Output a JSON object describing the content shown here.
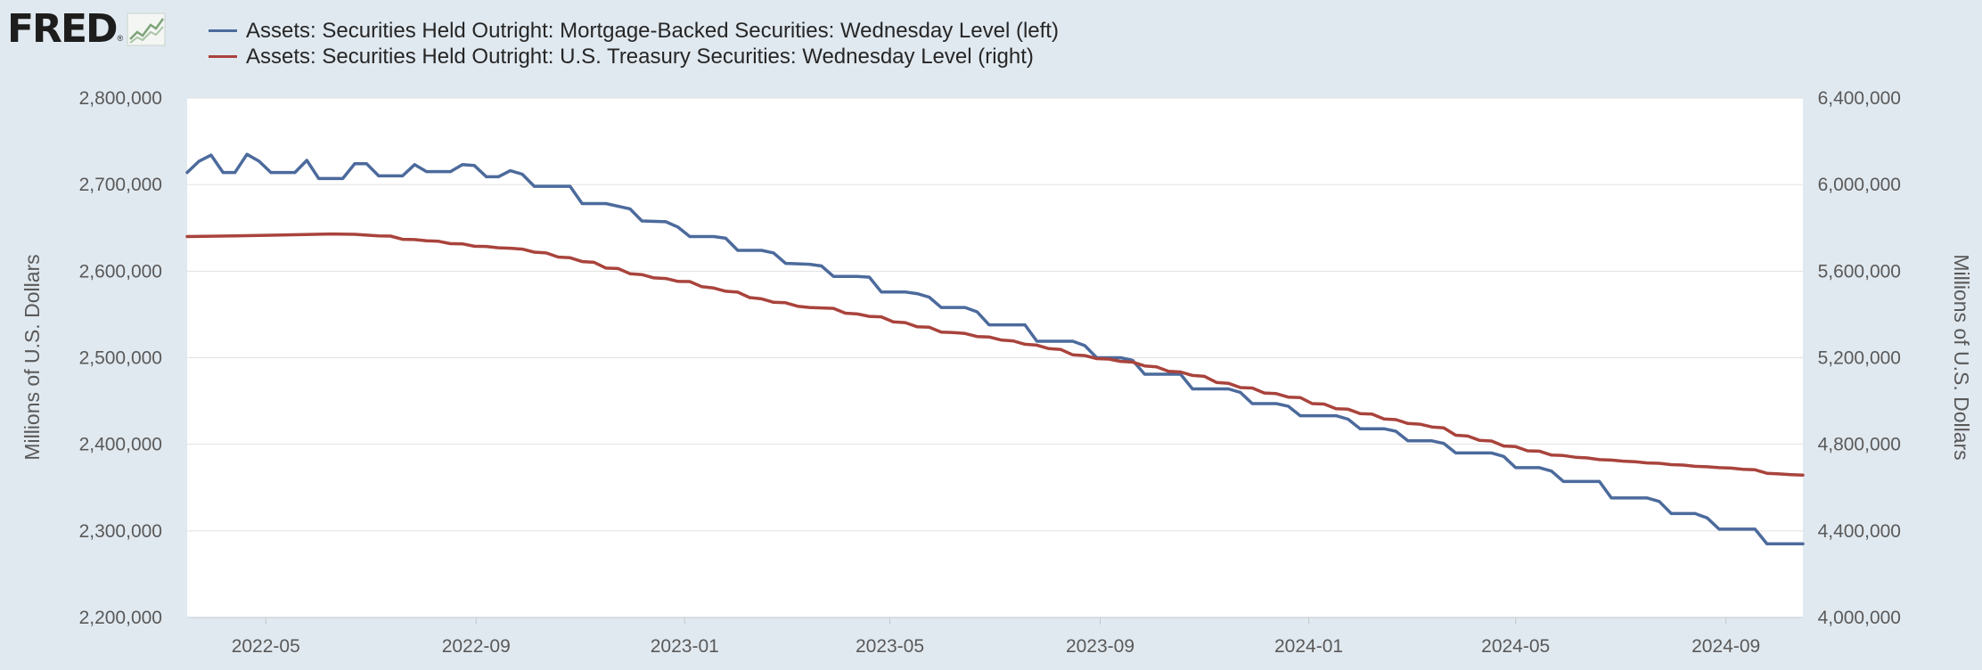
{
  "logo": {
    "text": "FRED",
    "reg": "®",
    "icon": "line-graph-icon"
  },
  "chart_data": {
    "type": "line",
    "title": "",
    "xlabel": "",
    "y_left_label": "Millions of U.S. Dollars",
    "y_right_label": "Millions of U.S. Dollars",
    "x_range": [
      "2022-03-16",
      "2024-10-16"
    ],
    "x_ticks": [
      "2022-05",
      "2022-09",
      "2023-01",
      "2023-05",
      "2023-09",
      "2024-01",
      "2024-05",
      "2024-09"
    ],
    "y_left_range": [
      2200000,
      2800000
    ],
    "y_left_ticks": [
      "2,200,000",
      "2,300,000",
      "2,400,000",
      "2,500,000",
      "2,600,000",
      "2,700,000",
      "2,800,000"
    ],
    "y_right_range": [
      4000000,
      6400000
    ],
    "y_right_ticks": [
      "4,000,000",
      "4,400,000",
      "4,800,000",
      "5,200,000",
      "5,600,000",
      "6,000,000",
      "6,400,000"
    ],
    "grid": true,
    "legend_position": "top-left",
    "series": [
      {
        "name": "Assets: Securities Held Outright: Mortgage-Backed Securities: Wednesday Level (left)",
        "color": "#4c6a9c",
        "axis": "left",
        "points": [
          [
            "2022-03-16",
            2714000
          ],
          [
            "2022-03-23",
            2727000
          ],
          [
            "2022-03-30",
            2734000
          ],
          [
            "2022-04-06",
            2714000
          ],
          [
            "2022-04-13",
            2714000
          ],
          [
            "2022-04-20",
            2735000
          ],
          [
            "2022-04-27",
            2727000
          ],
          [
            "2022-05-04",
            2714000
          ],
          [
            "2022-05-18",
            2714000
          ],
          [
            "2022-05-25",
            2728000
          ],
          [
            "2022-06-01",
            2707000
          ],
          [
            "2022-06-15",
            2707000
          ],
          [
            "2022-06-22",
            2724000
          ],
          [
            "2022-06-29",
            2724000
          ],
          [
            "2022-07-06",
            2710000
          ],
          [
            "2022-07-20",
            2710000
          ],
          [
            "2022-07-27",
            2723000
          ],
          [
            "2022-08-03",
            2715000
          ],
          [
            "2022-08-17",
            2715000
          ],
          [
            "2022-08-24",
            2723000
          ],
          [
            "2022-08-31",
            2722000
          ],
          [
            "2022-09-07",
            2709000
          ],
          [
            "2022-09-14",
            2709000
          ],
          [
            "2022-09-21",
            2716000
          ],
          [
            "2022-09-28",
            2712000
          ],
          [
            "2022-10-05",
            2698000
          ],
          [
            "2022-10-26",
            2698000
          ],
          [
            "2022-11-02",
            2678000
          ],
          [
            "2022-11-16",
            2678000
          ],
          [
            "2022-11-30",
            2672000
          ],
          [
            "2022-12-07",
            2658000
          ],
          [
            "2022-12-21",
            2657000
          ],
          [
            "2022-12-28",
            2651000
          ],
          [
            "2023-01-04",
            2640000
          ],
          [
            "2023-01-18",
            2640000
          ],
          [
            "2023-01-25",
            2638000
          ],
          [
            "2023-02-01",
            2624000
          ],
          [
            "2023-02-15",
            2624000
          ],
          [
            "2023-02-22",
            2621000
          ],
          [
            "2023-03-01",
            2609000
          ],
          [
            "2023-03-15",
            2608000
          ],
          [
            "2023-03-22",
            2606000
          ],
          [
            "2023-03-29",
            2594000
          ],
          [
            "2023-04-12",
            2594000
          ],
          [
            "2023-04-19",
            2593000
          ],
          [
            "2023-04-26",
            2576000
          ],
          [
            "2023-05-10",
            2576000
          ],
          [
            "2023-05-17",
            2574000
          ],
          [
            "2023-05-24",
            2570000
          ],
          [
            "2023-05-31",
            2558000
          ],
          [
            "2023-06-14",
            2558000
          ],
          [
            "2023-06-21",
            2553000
          ],
          [
            "2023-06-28",
            2538000
          ],
          [
            "2023-07-19",
            2538000
          ],
          [
            "2023-07-26",
            2519000
          ],
          [
            "2023-08-16",
            2519000
          ],
          [
            "2023-08-23",
            2514000
          ],
          [
            "2023-08-30",
            2500000
          ],
          [
            "2023-09-13",
            2500000
          ],
          [
            "2023-09-20",
            2497000
          ],
          [
            "2023-09-27",
            2481000
          ],
          [
            "2023-10-18",
            2481000
          ],
          [
            "2023-10-25",
            2464000
          ],
          [
            "2023-11-15",
            2464000
          ],
          [
            "2023-11-22",
            2460000
          ],
          [
            "2023-11-29",
            2447000
          ],
          [
            "2023-12-13",
            2447000
          ],
          [
            "2023-12-20",
            2444000
          ],
          [
            "2023-12-27",
            2433000
          ],
          [
            "2024-01-17",
            2433000
          ],
          [
            "2024-01-24",
            2429000
          ],
          [
            "2024-01-31",
            2418000
          ],
          [
            "2024-02-14",
            2418000
          ],
          [
            "2024-02-21",
            2415000
          ],
          [
            "2024-02-28",
            2404000
          ],
          [
            "2024-03-13",
            2404000
          ],
          [
            "2024-03-20",
            2401000
          ],
          [
            "2024-03-27",
            2390000
          ],
          [
            "2024-04-17",
            2390000
          ],
          [
            "2024-04-24",
            2386000
          ],
          [
            "2024-05-01",
            2373000
          ],
          [
            "2024-05-15",
            2373000
          ],
          [
            "2024-05-22",
            2369000
          ],
          [
            "2024-05-29",
            2357000
          ],
          [
            "2024-06-19",
            2357000
          ],
          [
            "2024-06-26",
            2338000
          ],
          [
            "2024-07-17",
            2338000
          ],
          [
            "2024-07-24",
            2334000
          ],
          [
            "2024-07-31",
            2320000
          ],
          [
            "2024-08-14",
            2320000
          ],
          [
            "2024-08-21",
            2315000
          ],
          [
            "2024-08-28",
            2302000
          ],
          [
            "2024-09-18",
            2302000
          ],
          [
            "2024-09-25",
            2285000
          ],
          [
            "2024-10-16",
            2285000
          ]
        ]
      },
      {
        "name": "Assets: Securities Held Outright: U.S. Treasury Securities: Wednesday Level (right)",
        "color": "#a9433c",
        "axis": "right",
        "points": [
          [
            "2022-03-16",
            5760000
          ],
          [
            "2022-04-13",
            5763000
          ],
          [
            "2022-05-11",
            5767000
          ],
          [
            "2022-06-08",
            5772000
          ],
          [
            "2022-06-22",
            5770000
          ],
          [
            "2022-07-06",
            5763000
          ],
          [
            "2022-07-13",
            5762000
          ],
          [
            "2022-07-20",
            5747000
          ],
          [
            "2022-07-27",
            5746000
          ],
          [
            "2022-08-03",
            5740000
          ],
          [
            "2022-08-10",
            5738000
          ],
          [
            "2022-08-17",
            5727000
          ],
          [
            "2022-08-24",
            5726000
          ],
          [
            "2022-08-31",
            5715000
          ],
          [
            "2022-09-07",
            5714000
          ],
          [
            "2022-09-14",
            5708000
          ],
          [
            "2022-09-21",
            5706000
          ],
          [
            "2022-09-28",
            5702000
          ],
          [
            "2022-10-05",
            5688000
          ],
          [
            "2022-10-12",
            5684000
          ],
          [
            "2022-10-19",
            5665000
          ],
          [
            "2022-10-26",
            5662000
          ],
          [
            "2022-11-02",
            5644000
          ],
          [
            "2022-11-09",
            5641000
          ],
          [
            "2022-11-16",
            5614000
          ],
          [
            "2022-11-23",
            5612000
          ],
          [
            "2022-11-30",
            5588000
          ],
          [
            "2022-12-07",
            5584000
          ],
          [
            "2022-12-14",
            5569000
          ],
          [
            "2022-12-21",
            5566000
          ],
          [
            "2022-12-28",
            5553000
          ],
          [
            "2023-01-04",
            5552000
          ],
          [
            "2023-01-11",
            5528000
          ],
          [
            "2023-01-18",
            5522000
          ],
          [
            "2023-01-25",
            5507000
          ],
          [
            "2023-02-01",
            5503000
          ],
          [
            "2023-02-08",
            5478000
          ],
          [
            "2023-02-15",
            5472000
          ],
          [
            "2023-02-22",
            5456000
          ],
          [
            "2023-03-01",
            5454000
          ],
          [
            "2023-03-08",
            5438000
          ],
          [
            "2023-03-15",
            5432000
          ],
          [
            "2023-03-22",
            5430000
          ],
          [
            "2023-03-29",
            5428000
          ],
          [
            "2023-04-05",
            5406000
          ],
          [
            "2023-04-12",
            5402000
          ],
          [
            "2023-04-19",
            5391000
          ],
          [
            "2023-04-26",
            5389000
          ],
          [
            "2023-05-03",
            5366000
          ],
          [
            "2023-05-10",
            5362000
          ],
          [
            "2023-05-17",
            5343000
          ],
          [
            "2023-05-24",
            5341000
          ],
          [
            "2023-05-31",
            5318000
          ],
          [
            "2023-06-07",
            5316000
          ],
          [
            "2023-06-14",
            5312000
          ],
          [
            "2023-06-21",
            5298000
          ],
          [
            "2023-06-28",
            5296000
          ],
          [
            "2023-07-05",
            5282000
          ],
          [
            "2023-07-12",
            5278000
          ],
          [
            "2023-07-19",
            5262000
          ],
          [
            "2023-07-26",
            5258000
          ],
          [
            "2023-08-02",
            5242000
          ],
          [
            "2023-08-09",
            5238000
          ],
          [
            "2023-08-16",
            5213000
          ],
          [
            "2023-08-23",
            5210000
          ],
          [
            "2023-08-30",
            5196000
          ],
          [
            "2023-09-06",
            5194000
          ],
          [
            "2023-09-13",
            5183000
          ],
          [
            "2023-09-20",
            5180000
          ],
          [
            "2023-09-27",
            5162000
          ],
          [
            "2023-10-04",
            5158000
          ],
          [
            "2023-10-11",
            5137000
          ],
          [
            "2023-10-18",
            5134000
          ],
          [
            "2023-10-25",
            5118000
          ],
          [
            "2023-11-01",
            5114000
          ],
          [
            "2023-11-08",
            5086000
          ],
          [
            "2023-11-15",
            5082000
          ],
          [
            "2023-11-22",
            5062000
          ],
          [
            "2023-11-29",
            5060000
          ],
          [
            "2023-12-06",
            5037000
          ],
          [
            "2023-12-13",
            5034000
          ],
          [
            "2023-12-20",
            5018000
          ],
          [
            "2023-12-27",
            5016000
          ],
          [
            "2024-01-03",
            4988000
          ],
          [
            "2024-01-10",
            4986000
          ],
          [
            "2024-01-17",
            4964000
          ],
          [
            "2024-01-24",
            4962000
          ],
          [
            "2024-01-31",
            4942000
          ],
          [
            "2024-02-07",
            4940000
          ],
          [
            "2024-02-14",
            4917000
          ],
          [
            "2024-02-21",
            4914000
          ],
          [
            "2024-02-28",
            4896000
          ],
          [
            "2024-03-06",
            4893000
          ],
          [
            "2024-03-13",
            4880000
          ],
          [
            "2024-03-20",
            4876000
          ],
          [
            "2024-03-27",
            4842000
          ],
          [
            "2024-04-03",
            4838000
          ],
          [
            "2024-04-10",
            4818000
          ],
          [
            "2024-04-17",
            4815000
          ],
          [
            "2024-04-24",
            4792000
          ],
          [
            "2024-05-01",
            4789000
          ],
          [
            "2024-05-08",
            4770000
          ],
          [
            "2024-05-15",
            4768000
          ],
          [
            "2024-05-22",
            4750000
          ],
          [
            "2024-05-29",
            4748000
          ],
          [
            "2024-06-05",
            4740000
          ],
          [
            "2024-06-12",
            4737000
          ],
          [
            "2024-06-19",
            4729000
          ],
          [
            "2024-06-26",
            4727000
          ],
          [
            "2024-07-03",
            4722000
          ],
          [
            "2024-07-10",
            4719000
          ],
          [
            "2024-07-17",
            4714000
          ],
          [
            "2024-07-24",
            4712000
          ],
          [
            "2024-07-31",
            4706000
          ],
          [
            "2024-08-07",
            4704000
          ],
          [
            "2024-08-14",
            4698000
          ],
          [
            "2024-08-21",
            4696000
          ],
          [
            "2024-08-28",
            4692000
          ],
          [
            "2024-09-04",
            4690000
          ],
          [
            "2024-09-11",
            4684000
          ],
          [
            "2024-09-18",
            4682000
          ],
          [
            "2024-09-25",
            4666000
          ],
          [
            "2024-10-02",
            4663000
          ],
          [
            "2024-10-09",
            4660000
          ],
          [
            "2024-10-16",
            4658000
          ]
        ]
      }
    ]
  }
}
